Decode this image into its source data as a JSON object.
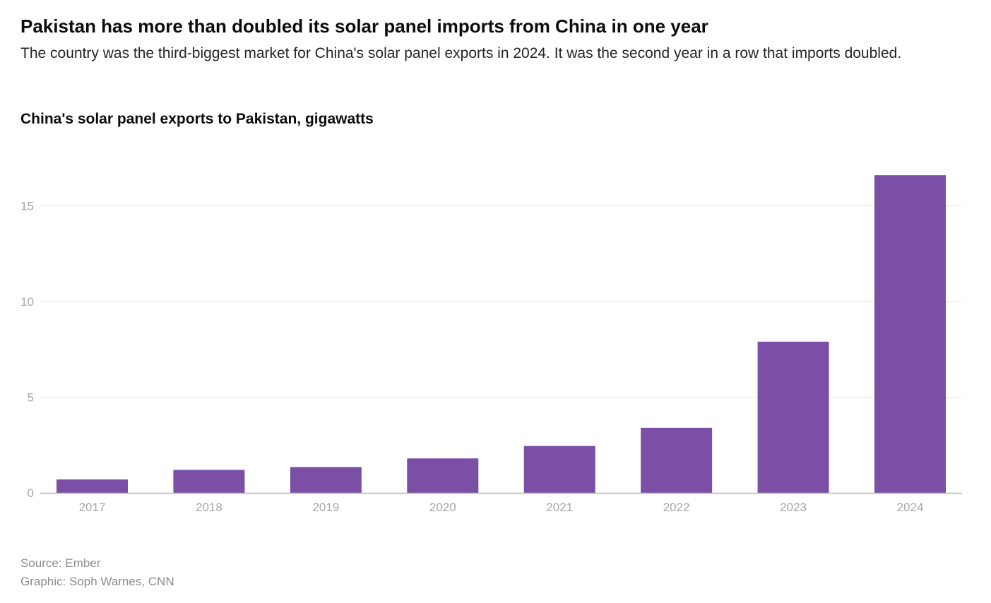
{
  "header": {
    "title": "Pakistan has more than doubled its solar panel imports from China in one year",
    "subtitle": "The country was the third-biggest market for China's solar panel exports in 2024. It was the second year in a row that imports doubled."
  },
  "chart_data": {
    "type": "bar",
    "title": "China's solar panel exports to Pakistan, gigawatts",
    "xlabel": "",
    "ylabel": "",
    "categories": [
      "2017",
      "2018",
      "2019",
      "2020",
      "2021",
      "2022",
      "2023",
      "2024"
    ],
    "values": [
      0.7,
      1.2,
      1.35,
      1.8,
      2.45,
      3.4,
      7.9,
      16.6
    ],
    "ylim": [
      0,
      17
    ],
    "yticks": [
      0,
      5,
      10,
      15
    ],
    "grid": true,
    "legend": "none",
    "colors": {
      "bar": "#7b4fa6",
      "grid": "#e6e6e6",
      "axis": "#b3b3b3",
      "tick_label": "#a6a6a6"
    }
  },
  "footer": {
    "source": "Source: Ember",
    "credit": "Graphic: Soph Warnes, CNN"
  }
}
